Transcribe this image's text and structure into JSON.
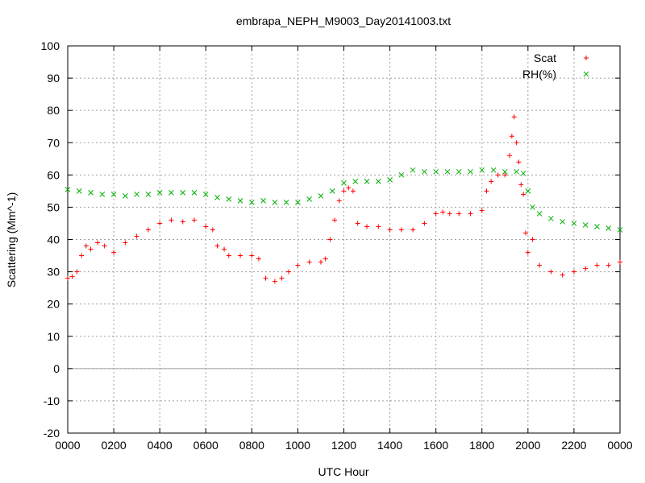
{
  "chart_data": {
    "type": "scatter",
    "title": "embrapa_NEPH_M9003_Day20141003.txt",
    "xlabel": "UTC Hour",
    "ylabel": "Scattering (Mm^-1)",
    "xlim": [
      0,
      24
    ],
    "ylim": [
      -20,
      100
    ],
    "xticks": [
      {
        "value": 0,
        "label": "0000"
      },
      {
        "value": 2,
        "label": "0200"
      },
      {
        "value": 4,
        "label": "0400"
      },
      {
        "value": 6,
        "label": "0600"
      },
      {
        "value": 8,
        "label": "0800"
      },
      {
        "value": 10,
        "label": "1000"
      },
      {
        "value": 12,
        "label": "1200"
      },
      {
        "value": 14,
        "label": "1400"
      },
      {
        "value": 16,
        "label": "1600"
      },
      {
        "value": 18,
        "label": "1800"
      },
      {
        "value": 20,
        "label": "2000"
      },
      {
        "value": 22,
        "label": "2200"
      },
      {
        "value": 24,
        "label": "0000"
      }
    ],
    "yticks": [
      -20,
      -10,
      0,
      10,
      20,
      30,
      40,
      50,
      60,
      70,
      80,
      90,
      100
    ],
    "grid": true,
    "zero_line": true,
    "legend_position": "top-right",
    "series": [
      {
        "name": "Scat",
        "marker": "+",
        "color": "#ff0000",
        "x": [
          0.0,
          0.2,
          0.4,
          0.6,
          0.8,
          1.0,
          1.3,
          1.6,
          2.0,
          2.5,
          3.0,
          3.5,
          4.0,
          4.5,
          5.0,
          5.5,
          6.0,
          6.3,
          6.5,
          6.8,
          7.0,
          7.5,
          8.0,
          8.3,
          8.6,
          9.0,
          9.3,
          9.6,
          10.0,
          10.5,
          11.0,
          11.2,
          11.4,
          11.6,
          11.8,
          12.0,
          12.2,
          12.4,
          12.6,
          13.0,
          13.5,
          14.0,
          14.5,
          15.0,
          15.5,
          16.0,
          16.3,
          16.6,
          17.0,
          17.5,
          18.0,
          18.2,
          18.4,
          18.7,
          19.0,
          19.2,
          19.3,
          19.4,
          19.5,
          19.6,
          19.7,
          19.8,
          19.9,
          20.0,
          20.2,
          20.5,
          21.0,
          21.5,
          22.0,
          22.5,
          23.0,
          23.5,
          24.0
        ],
        "y": [
          28,
          28.5,
          30,
          35,
          38,
          37,
          39,
          38,
          36,
          39,
          41,
          43,
          45,
          46,
          45.5,
          46,
          44,
          43,
          38,
          37,
          35,
          35,
          35,
          34,
          28,
          27,
          28,
          30,
          32,
          33,
          33,
          34,
          40,
          46,
          52,
          55,
          56,
          55,
          45,
          44,
          44,
          43,
          43,
          43,
          45,
          48,
          48.5,
          48,
          48,
          48,
          49,
          55,
          58,
          60,
          60,
          66,
          72,
          78,
          70,
          64,
          57,
          54,
          42,
          36,
          40,
          32,
          30,
          29,
          30,
          31,
          32,
          32,
          33
        ]
      },
      {
        "name": "RH(%)",
        "marker": "x",
        "color": "#00b000",
        "x": [
          0.0,
          0.5,
          1.0,
          1.5,
          2.0,
          2.5,
          3.0,
          3.5,
          4.0,
          4.5,
          5.0,
          5.5,
          6.0,
          6.5,
          7.0,
          7.5,
          8.0,
          8.5,
          9.0,
          9.5,
          10.0,
          10.5,
          11.0,
          11.5,
          12.0,
          12.5,
          13.0,
          13.5,
          14.0,
          14.5,
          15.0,
          15.5,
          16.0,
          16.5,
          17.0,
          17.5,
          18.0,
          18.5,
          19.0,
          19.5,
          19.8,
          20.0,
          20.2,
          20.5,
          21.0,
          21.5,
          22.0,
          22.5,
          23.0,
          23.5,
          24.0
        ],
        "y": [
          55.5,
          55,
          54.5,
          54,
          54,
          53.5,
          54,
          54,
          54.5,
          54.5,
          54.5,
          54.5,
          54,
          53,
          52.5,
          52,
          51.5,
          52,
          51.5,
          51.5,
          51.5,
          52.5,
          53.5,
          55,
          57.5,
          58,
          58,
          58,
          58.5,
          60,
          61.5,
          61,
          61,
          61,
          61,
          61,
          61.5,
          61.5,
          61,
          61,
          60.5,
          55,
          50,
          48,
          46.5,
          45.5,
          45,
          44.5,
          44,
          43.5,
          43
        ]
      }
    ]
  }
}
